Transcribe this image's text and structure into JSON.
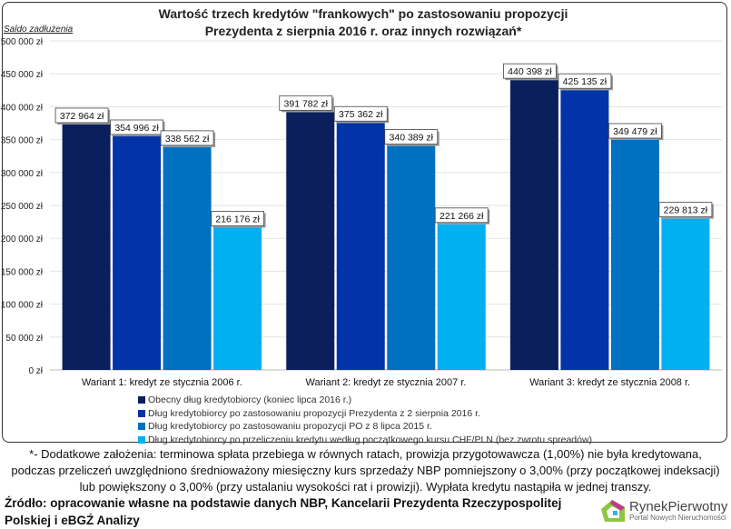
{
  "chart_data": {
    "type": "bar",
    "title": "Wartość trzech kredytów \"frankowych\" po zastosowaniu propozycji Prezydenta z sierpnia 2016 r. oraz innych rozwiązań*",
    "title_lines": [
      "Wartość trzech kredytów \"frankowych\" po zastosowaniu propozycji",
      "Prezydenta z sierpnia 2016 r. oraz innych rozwiązań*"
    ],
    "ylabel": "Saldo zadłużenia",
    "ylim": [
      0,
      500000
    ],
    "yticks": [
      "0 zł",
      "50 000 zł",
      "100 000 zł",
      "150 000 zł",
      "200 000 zł",
      "250 000 zł",
      "300 000 zł",
      "350 000 zł",
      "400 000 zł",
      "450 000 zł",
      "500 000 zł"
    ],
    "grid": true,
    "legend_position": "bottom",
    "categories": [
      "Wariant 1: kredyt ze stycznia 2006 r.",
      "Wariant 2: kredyt ze stycznia 2007 r.",
      "Wariant 3: kredyt ze stycznia 2008 r."
    ],
    "series": [
      {
        "name": "Obecny dług kredytobiorcy (koniec lipca 2016 r.)",
        "color": "#0b1f5c",
        "values": [
          372964,
          391782,
          440398
        ],
        "labels": [
          "372 964 zł",
          "391 782 zł",
          "440 398 zł"
        ]
      },
      {
        "name": "Dług kredytobiorcy po zastosowaniu propozycji Prezydenta z 2 sierpnia 2016 r.",
        "color": "#0333a8",
        "values": [
          354996,
          375362,
          425135
        ],
        "labels": [
          "354 996 zł",
          "375 362 zł",
          "425 135 zł"
        ]
      },
      {
        "name": "Dług kredytobiorcy po zastosowaniu propozycji PO z 8 lipca 2015 r.",
        "color": "#0070c0",
        "values": [
          338562,
          340389,
          349479
        ],
        "labels": [
          "338 562 zł",
          "340 389 zł",
          "349 479 zł"
        ]
      },
      {
        "name": "Dług kredytobiorcy po przeliczeniu kredytu według początkowego kursu CHF/PLN (bez zwrotu spreadów)",
        "color": "#00b0f0",
        "values": [
          216176,
          221266,
          229813
        ],
        "labels": [
          "216 176 zł",
          "221 266 zł",
          "229 813 zł"
        ]
      }
    ]
  },
  "note": [
    "*- Dodatkowe założenia: terminowa spłata przebiega w równych ratach, prowizja przygotowawcza (1,00%) nie była kredytowana,",
    "podczas przeliczeń uwzględniono średnioważony miesięczny kurs sprzedaży NBP pomniejszony o 3,00% (przy początkowej indeksacji)",
    "lub powiększony o 3,00% (przy ustalaniu wysokości rat i prowizji). Wypłata kredytu nastąpiła w jednej transzy."
  ],
  "source": [
    "Źródło: opracowanie własne na podstawie danych NBP, Kancelarii Prezydenta Rzeczypospolitej",
    "Polskiej i eBGŹ Analizy"
  ],
  "logo": {
    "name": "RynekPierwotny",
    "tagline": "Portal Nowych Nieruchomości"
  }
}
